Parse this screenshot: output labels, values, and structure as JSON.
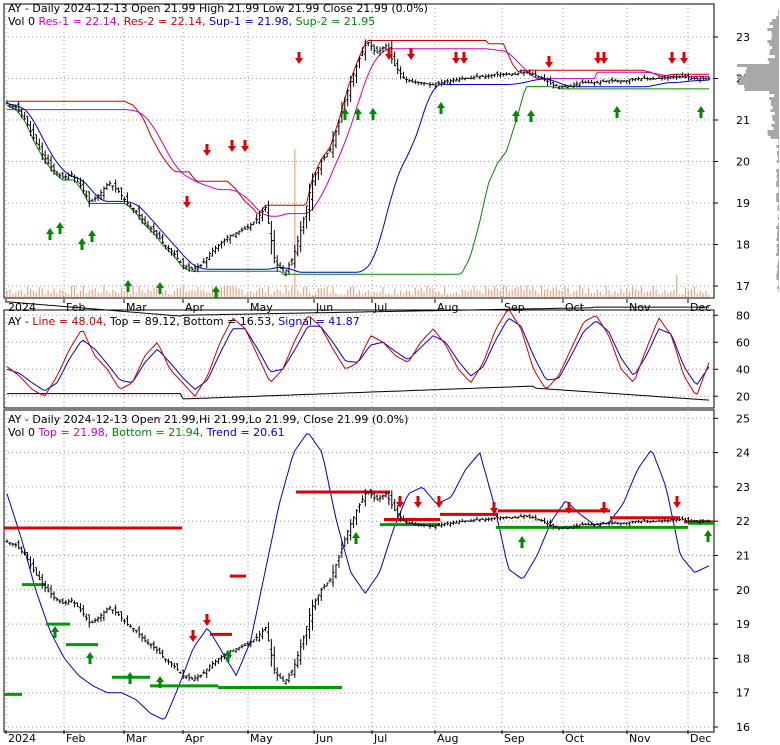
{
  "chart_data": [
    {
      "type": "candlestick",
      "panel": "price",
      "header": "AY - Daily 2024-12-13 Open 21.99  High 21.99  Low 21.99  Close 21.99 (0.0%)",
      "sub_header": [
        {
          "text": "Vol 0",
          "color": "#000000"
        },
        {
          "text": "Res-1 = 22.14,",
          "color": "#cc00cc"
        },
        {
          "text": "Res-2 = 22.14,",
          "color": "#cc0000"
        },
        {
          "text": "Sup-1 = 21.98,",
          "color": "#0000cc"
        },
        {
          "text": "Sup-2 = 21.95",
          "color": "#008800"
        }
      ],
      "y_ticks": [
        "17",
        "18",
        "19",
        "20",
        "21",
        "22",
        "23"
      ],
      "ylim": [
        16.85,
        23.4
      ],
      "x_ticks": [
        "2024",
        "Feb",
        "Mar",
        "Apr",
        "May",
        "Jun",
        "Jul",
        "Aug",
        "Sep",
        "Oct",
        "Nov",
        "Dec"
      ],
      "close_series": [
        21.4,
        21.3,
        21.0,
        20.5,
        20.1,
        19.8,
        19.6,
        19.7,
        19.4,
        19.0,
        19.2,
        19.5,
        19.3,
        19.0,
        18.8,
        18.5,
        18.3,
        18.0,
        17.8,
        17.5,
        17.4,
        17.5,
        17.8,
        18.0,
        18.2,
        18.3,
        18.4,
        18.6,
        18.9,
        17.6,
        17.3,
        17.7,
        18.5,
        19.5,
        20.0,
        20.3,
        21.0,
        21.8,
        22.4,
        22.9,
        22.6,
        22.8,
        22.3,
        22.0,
        21.9,
        21.9,
        21.85,
        21.9,
        21.95,
        22.0,
        22.0,
        22.05,
        22.05,
        22.1,
        22.1,
        22.1,
        22.15,
        22.1,
        22.0,
        21.85,
        21.8,
        21.8,
        21.9,
        21.9,
        21.9,
        21.95,
        21.95,
        21.95,
        22.0,
        22.0,
        22.0,
        22.0,
        22.05,
        22.05,
        22.0,
        22.0,
        21.99
      ],
      "volume_spikes": [
        {
          "date": "May",
          "value": "large"
        },
        {
          "date": "Dec",
          "value": "small"
        }
      ],
      "up_arrows": [
        "Jan",
        "Jan",
        "Feb",
        "Feb",
        "Mar",
        "Mar",
        "Apr",
        "Jun",
        "Jun",
        "Jun",
        "Aug",
        "Sep",
        "Sep",
        "Oct",
        "Dec"
      ],
      "down_arrows": [
        "Apr",
        "Apr",
        "Apr",
        "May",
        "May",
        "Jul",
        "Jul",
        "Aug",
        "Aug",
        "Aug",
        "Sep",
        "Oct",
        "Oct",
        "Nov",
        "Nov"
      ]
    },
    {
      "type": "line",
      "panel": "stochastic",
      "header": [
        {
          "text": "AY - ",
          "color": "#000000"
        },
        {
          "text": "Line = 48.04,",
          "color": "#cc0000"
        },
        {
          "text": "Top = 89.12,",
          "color": "#000000"
        },
        {
          "text": "Bottom = 16.53,",
          "color": "#000000"
        },
        {
          "text": "Signal = 41.87",
          "color": "#0000cc"
        }
      ],
      "y_ticks": [
        "20",
        "40",
        "60",
        "80"
      ],
      "ylim": [
        12,
        95
      ],
      "line_values": [
        42,
        35,
        25,
        20,
        35,
        55,
        70,
        50,
        40,
        25,
        30,
        50,
        60,
        40,
        30,
        20,
        35,
        60,
        78,
        70,
        50,
        30,
        40,
        62,
        80,
        72,
        55,
        40,
        45,
        65,
        60,
        50,
        45,
        60,
        70,
        58,
        40,
        30,
        45,
        70,
        85,
        70,
        40,
        25,
        35,
        55,
        75,
        80,
        65,
        40,
        30,
        55,
        78,
        65,
        35,
        20,
        45
      ],
      "signal_values": [
        40,
        37,
        30,
        24,
        30,
        48,
        62,
        55,
        44,
        32,
        30,
        45,
        55,
        45,
        34,
        25,
        32,
        52,
        70,
        70,
        55,
        38,
        40,
        55,
        72,
        72,
        60,
        46,
        45,
        58,
        60,
        53,
        47,
        56,
        65,
        60,
        46,
        35,
        42,
        62,
        78,
        72,
        50,
        32,
        33,
        50,
        68,
        76,
        68,
        48,
        35,
        50,
        70,
        66,
        42,
        28,
        42
      ],
      "top_value": 89.12,
      "bottom_value": 16.53
    },
    {
      "type": "candlestick",
      "panel": "trend",
      "header": "AY - Daily 2024-12-13 Open 21.99,Hi 21.99,Lo 21.99,  Close 21.99 (0.0%)",
      "sub_header": [
        {
          "text": "Vol 0",
          "color": "#000000"
        },
        {
          "text": "Top = 21.98,",
          "color": "#cc00cc"
        },
        {
          "text": "Bottom = 21.94,",
          "color": "#008800"
        },
        {
          "text": "Trend = 20.61",
          "color": "#0000cc"
        }
      ],
      "y_ticks": [
        "16",
        "17",
        "18",
        "19",
        "20",
        "21",
        "22",
        "23",
        "24",
        "25"
      ],
      "ylim": [
        15.9,
        25.4
      ],
      "x_ticks": [
        "2024",
        "Feb",
        "Mar",
        "Apr",
        "May",
        "Jun",
        "Jul",
        "Aug",
        "Sep",
        "Oct",
        "Nov",
        "Dec"
      ],
      "close_series": [
        21.4,
        21.3,
        21.0,
        20.5,
        20.1,
        19.8,
        19.6,
        19.7,
        19.4,
        19.0,
        19.2,
        19.5,
        19.3,
        19.0,
        18.8,
        18.5,
        18.3,
        18.0,
        17.8,
        17.5,
        17.4,
        17.5,
        17.8,
        18.0,
        18.2,
        18.3,
        18.4,
        18.6,
        18.9,
        17.6,
        17.3,
        17.7,
        18.5,
        19.5,
        20.0,
        20.3,
        21.0,
        21.8,
        22.4,
        22.9,
        22.6,
        22.8,
        22.3,
        22.0,
        21.9,
        21.9,
        21.85,
        21.9,
        21.95,
        22.0,
        22.0,
        22.05,
        22.05,
        22.1,
        22.1,
        22.1,
        22.15,
        22.1,
        22.0,
        21.85,
        21.8,
        21.8,
        21.9,
        21.9,
        21.9,
        21.95,
        21.95,
        21.95,
        22.0,
        22.0,
        22.0,
        22.0,
        22.05,
        22.05,
        22.0,
        22.0,
        21.99
      ],
      "trend_values": [
        22.8,
        21.5,
        20.0,
        18.8,
        18.0,
        17.5,
        17.2,
        17.0,
        17.0,
        16.8,
        16.4,
        16.2,
        17.2,
        18.3,
        18.9,
        18.2,
        17.5,
        18.5,
        20.5,
        22.5,
        24.0,
        24.6,
        24.0,
        22.0,
        20.5,
        19.9,
        20.5,
        21.8,
        22.8,
        23.0,
        22.5,
        22.7,
        23.5,
        24.0,
        22.5,
        20.6,
        20.3,
        21.0,
        22.0,
        22.6,
        22.2,
        21.9,
        21.95,
        22.5,
        23.5,
        24.1,
        23.0,
        21.0,
        20.5,
        20.7
      ]
    }
  ]
}
